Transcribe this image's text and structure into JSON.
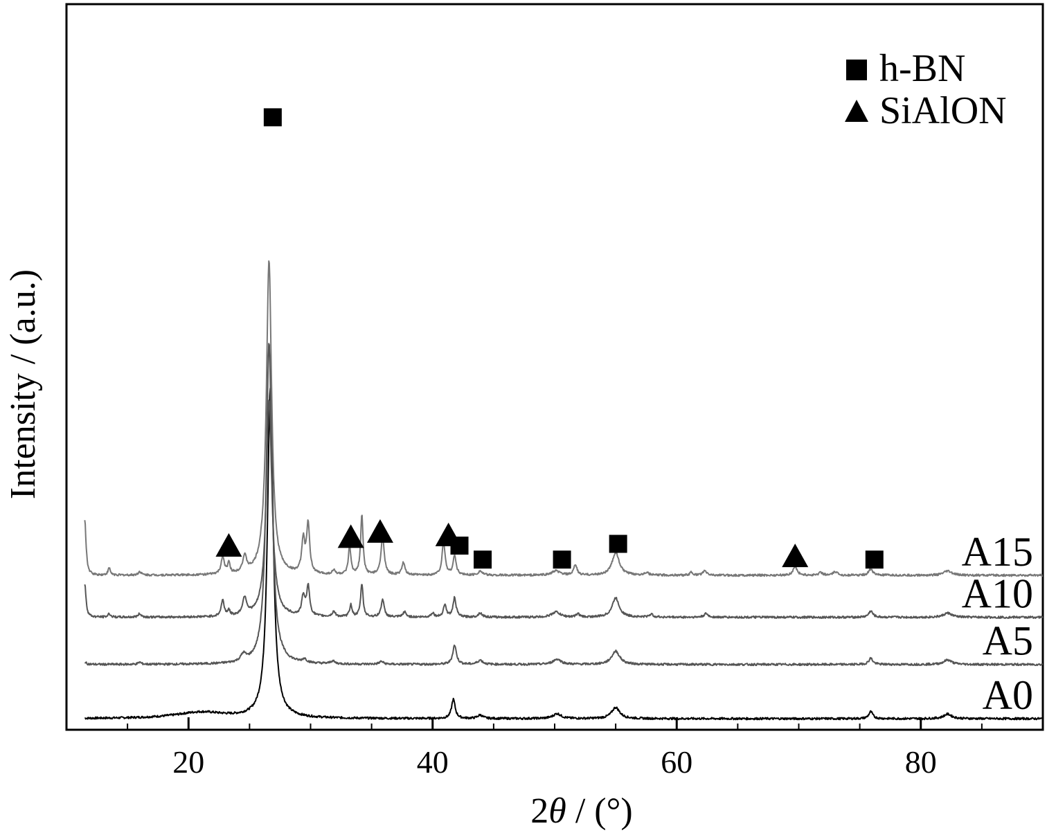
{
  "chart_data": {
    "type": "line",
    "title": "",
    "xlabel_prefix": "2",
    "xlabel_symbol": "θ",
    "xlabel_suffix": " / (°)",
    "ylabel": "Intensity / (a.u.)",
    "xlim": [
      10,
      90
    ],
    "xticks": [
      20,
      40,
      60,
      80
    ],
    "xtick_labels": [
      "20",
      "40",
      "60",
      "80"
    ],
    "yticks_shown": false,
    "legend": {
      "placement": "top-right",
      "entries": [
        {
          "marker": "square",
          "label": "h-BN"
        },
        {
          "marker": "triangle",
          "label": "SiAlON"
        }
      ]
    },
    "series": [
      {
        "name": "A0",
        "color": "#000000",
        "baseline": 0,
        "peaks": [
          [
            21.0,
            0.18,
            2.5
          ],
          [
            26.7,
            9.4,
            0.28
          ],
          [
            41.7,
            0.55,
            0.18
          ],
          [
            43.9,
            0.1,
            0.25
          ],
          [
            50.2,
            0.14,
            0.4
          ],
          [
            55.0,
            0.32,
            0.4
          ],
          [
            75.9,
            0.2,
            0.2
          ],
          [
            82.2,
            0.13,
            0.4
          ]
        ]
      },
      {
        "name": "A5",
        "color": "#555555",
        "baseline": 1.55,
        "peaks": [
          [
            11.5,
            0.06,
            0.15
          ],
          [
            16.0,
            0.06,
            0.15
          ],
          [
            24.5,
            0.2,
            0.25
          ],
          [
            26.6,
            9.2,
            0.28
          ],
          [
            29.5,
            0.1,
            0.2
          ],
          [
            31.8,
            0.08,
            0.2
          ],
          [
            35.8,
            0.08,
            0.2
          ],
          [
            41.8,
            0.55,
            0.18
          ],
          [
            43.9,
            0.12,
            0.25
          ],
          [
            50.2,
            0.15,
            0.4
          ],
          [
            55.0,
            0.38,
            0.4
          ],
          [
            75.9,
            0.18,
            0.2
          ],
          [
            82.2,
            0.13,
            0.4
          ]
        ]
      },
      {
        "name": "A10",
        "color": "#555555",
        "baseline": 2.9,
        "peaks": [
          [
            11.5,
            0.95,
            0.12
          ],
          [
            13.5,
            0.1,
            0.12
          ],
          [
            16.0,
            0.1,
            0.15
          ],
          [
            22.8,
            0.45,
            0.15
          ],
          [
            23.3,
            0.15,
            0.12
          ],
          [
            24.6,
            0.5,
            0.2
          ],
          [
            26.6,
            6.2,
            0.28
          ],
          [
            29.4,
            0.55,
            0.15
          ],
          [
            29.8,
            0.85,
            0.15
          ],
          [
            31.9,
            0.15,
            0.15
          ],
          [
            33.3,
            0.35,
            0.12
          ],
          [
            34.2,
            0.95,
            0.12
          ],
          [
            35.9,
            0.5,
            0.15
          ],
          [
            37.7,
            0.15,
            0.15
          ],
          [
            40.0,
            0.12,
            0.15
          ],
          [
            41.0,
            0.35,
            0.15
          ],
          [
            41.8,
            0.55,
            0.15
          ],
          [
            43.9,
            0.12,
            0.2
          ],
          [
            50.1,
            0.15,
            0.4
          ],
          [
            51.9,
            0.1,
            0.15
          ],
          [
            55.0,
            0.55,
            0.35
          ],
          [
            57.9,
            0.08,
            0.2
          ],
          [
            62.4,
            0.1,
            0.2
          ],
          [
            75.9,
            0.18,
            0.2
          ],
          [
            82.2,
            0.12,
            0.4
          ]
        ]
      },
      {
        "name": "A15",
        "color": "#777777",
        "baseline": 4.1,
        "peaks": [
          [
            11.5,
            1.6,
            0.12
          ],
          [
            13.5,
            0.2,
            0.12
          ],
          [
            16.0,
            0.1,
            0.15
          ],
          [
            22.8,
            0.5,
            0.15
          ],
          [
            23.3,
            0.3,
            0.12
          ],
          [
            24.6,
            0.45,
            0.2
          ],
          [
            26.4,
            0.5,
            0.4
          ],
          [
            26.6,
            8.6,
            0.25
          ],
          [
            29.4,
            0.95,
            0.15
          ],
          [
            29.8,
            1.4,
            0.15
          ],
          [
            31.9,
            0.12,
            0.15
          ],
          [
            33.2,
            0.8,
            0.12
          ],
          [
            34.2,
            1.7,
            0.12
          ],
          [
            35.9,
            1.15,
            0.15
          ],
          [
            37.6,
            0.35,
            0.15
          ],
          [
            40.9,
            0.95,
            0.15
          ],
          [
            41.8,
            0.55,
            0.15
          ],
          [
            43.9,
            0.12,
            0.2
          ],
          [
            50.1,
            0.12,
            0.4
          ],
          [
            51.7,
            0.3,
            0.15
          ],
          [
            55.0,
            0.65,
            0.35
          ],
          [
            57.5,
            0.08,
            0.2
          ],
          [
            61.2,
            0.08,
            0.15
          ],
          [
            62.3,
            0.12,
            0.2
          ],
          [
            69.7,
            0.25,
            0.2
          ],
          [
            71.8,
            0.08,
            0.2
          ],
          [
            73.0,
            0.1,
            0.2
          ],
          [
            75.9,
            0.18,
            0.2
          ],
          [
            82.2,
            0.12,
            0.4
          ]
        ]
      }
    ],
    "series_labels": [
      "A15",
      "A10",
      "A5",
      "A0"
    ],
    "markers": [
      {
        "type": "square",
        "x": 26.9,
        "y": 17.2
      },
      {
        "type": "triangle",
        "x": 23.3,
        "y": 4.95
      },
      {
        "type": "triangle",
        "x": 33.3,
        "y": 5.2
      },
      {
        "type": "triangle",
        "x": 35.7,
        "y": 5.35
      },
      {
        "type": "triangle",
        "x": 41.3,
        "y": 5.25
      },
      {
        "type": "square",
        "x": 42.2,
        "y": 4.95
      },
      {
        "type": "square",
        "x": 44.1,
        "y": 4.55
      },
      {
        "type": "square",
        "x": 50.6,
        "y": 4.55
      },
      {
        "type": "square",
        "x": 55.2,
        "y": 5.0
      },
      {
        "type": "triangle",
        "x": 69.7,
        "y": 4.65
      },
      {
        "type": "square",
        "x": 76.2,
        "y": 4.55
      }
    ]
  }
}
